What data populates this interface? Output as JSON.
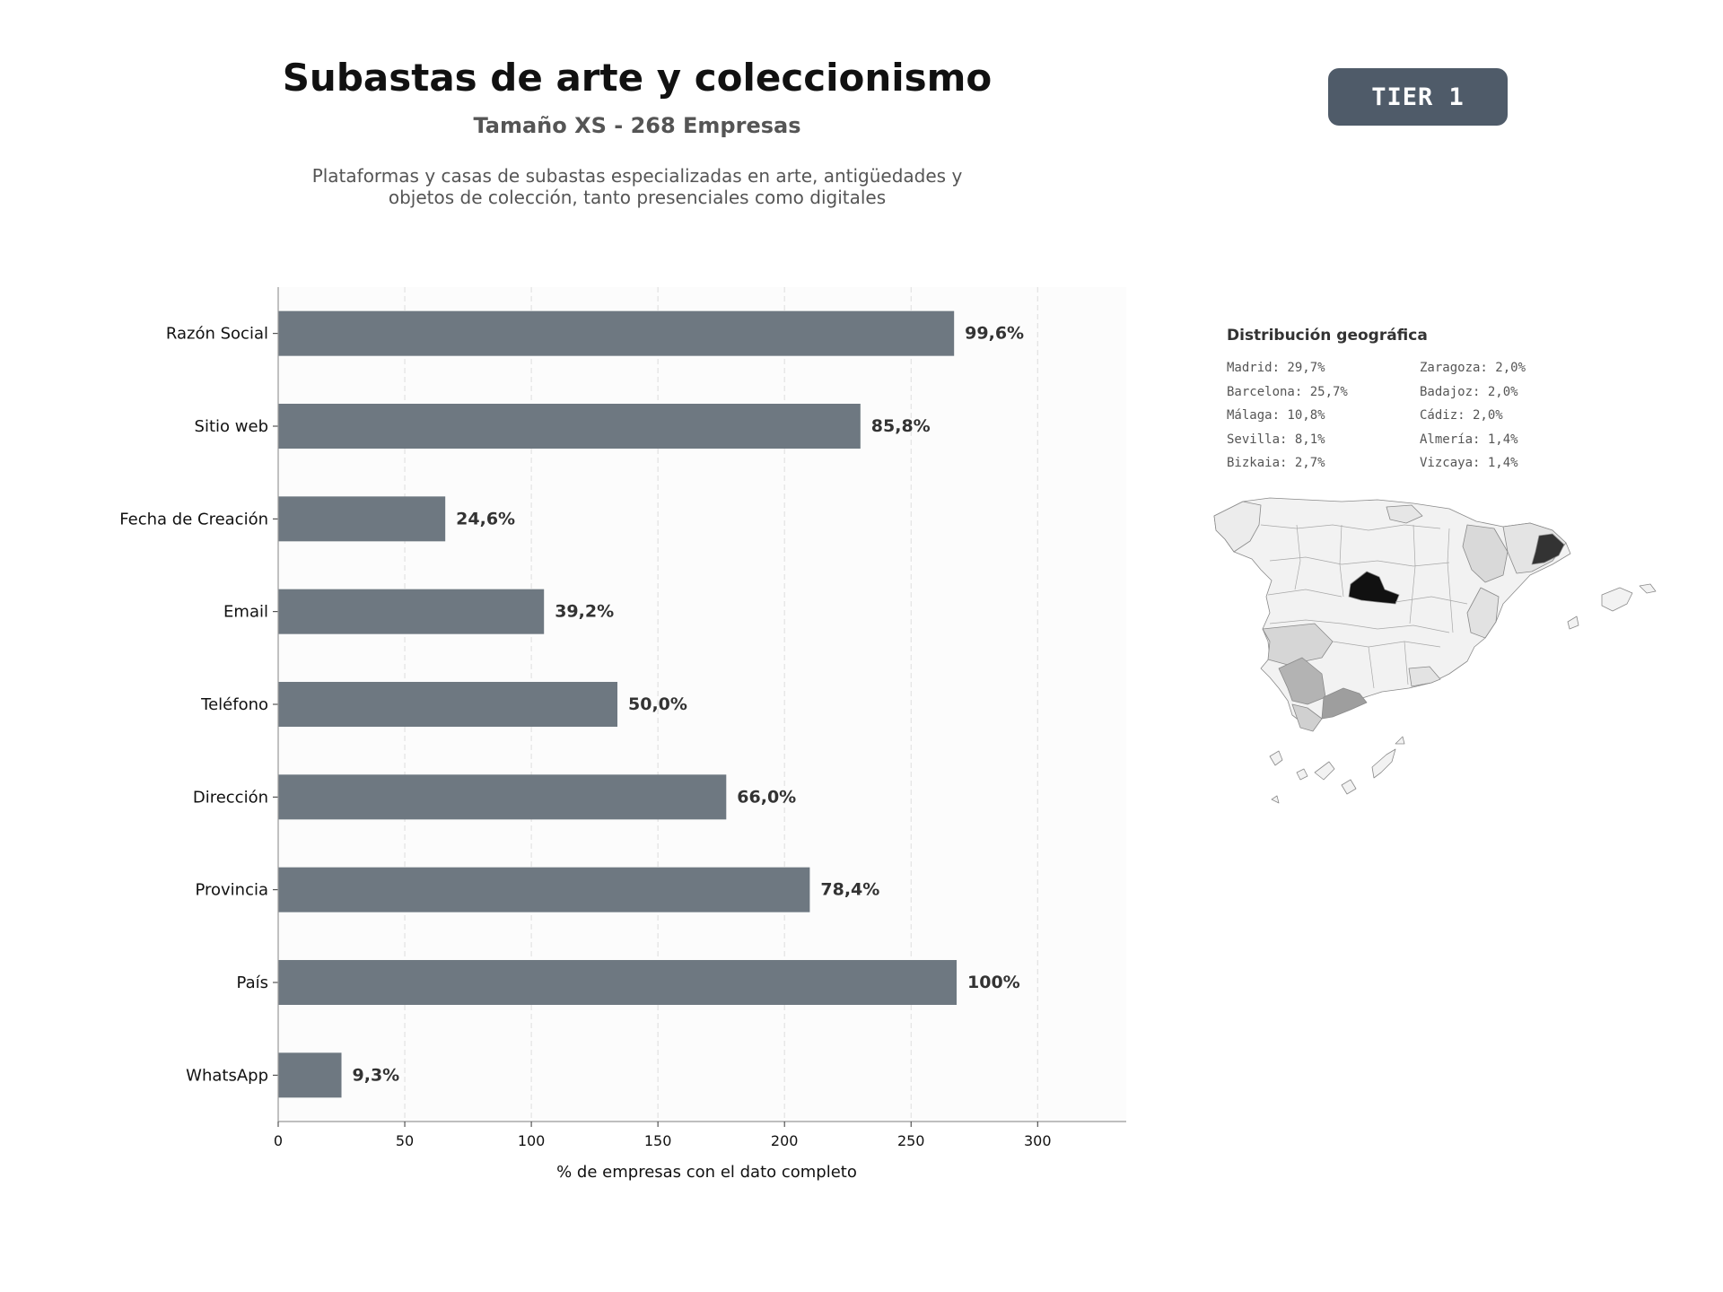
{
  "header": {
    "title": "Subastas de arte y coleccionismo",
    "subtitle": "Tamaño XS - 268 Empresas",
    "description_line1": "Plataformas y casas de subastas especializadas en arte, antigüedades y",
    "description_line2": "objetos de colección, tanto presenciales como digitales",
    "tier_badge": "TIER 1"
  },
  "chart_data": {
    "type": "bar",
    "orientation": "horizontal",
    "categories": [
      "Razón Social",
      "Sitio web",
      "Fecha de Creación",
      "Email",
      "Teléfono",
      "Dirección",
      "Provincia",
      "País",
      "WhatsApp"
    ],
    "values": [
      267,
      230,
      66,
      105,
      134,
      177,
      210,
      268,
      25
    ],
    "value_labels": [
      "99,6%",
      "85,8%",
      "24,6%",
      "39,2%",
      "50,0%",
      "66,0%",
      "78,4%",
      "100%",
      "9,3%"
    ],
    "xlabel": "% de empresas con el dato completo",
    "xlim": [
      0,
      335
    ],
    "xticks": [
      0,
      50,
      100,
      150,
      200,
      250,
      300
    ],
    "grid": "vertical dashed",
    "bar_color": "#6e7881"
  },
  "geo": {
    "title": "Distribución geográfica",
    "left_column": [
      "Madrid: 29,7%",
      "Barcelona: 25,7%",
      "Málaga: 10,8%",
      "Sevilla: 8,1%",
      "Bizkaia: 2,7%"
    ],
    "right_column": [
      "Zaragoza: 2,0%",
      "Badajoz: 2,0%",
      "Cádiz: 2,0%",
      "Almería: 1,4%",
      "Vizcaya: 1,4%"
    ]
  }
}
